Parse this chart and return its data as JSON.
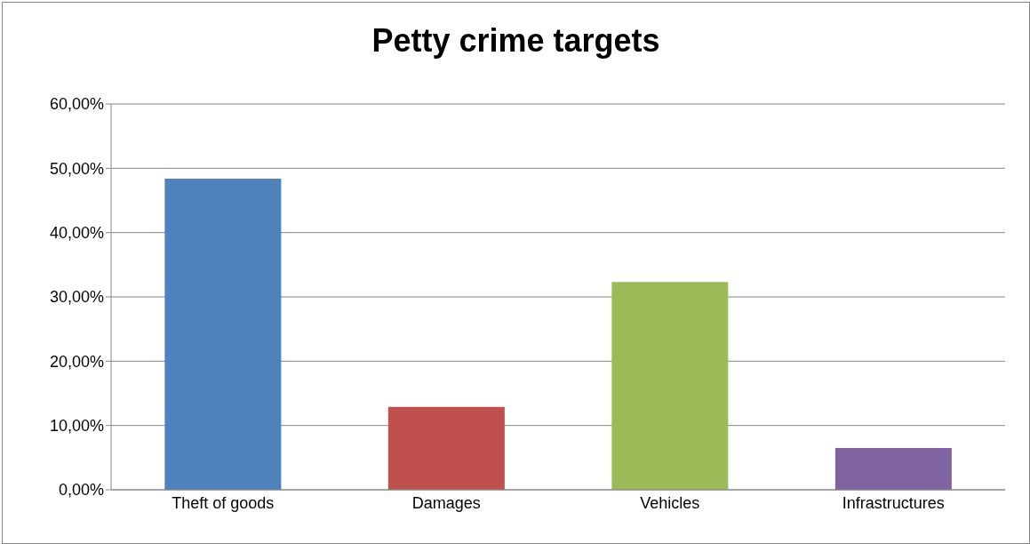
{
  "chart_data": {
    "type": "bar",
    "title": "Petty crime targets",
    "categories": [
      "Theft of goods",
      "Damages",
      "Vehicles",
      "Infrastructures"
    ],
    "values": [
      48.4,
      12.9,
      32.3,
      6.5
    ],
    "colors": [
      "#4f81bd",
      "#c0504d",
      "#9bbb59",
      "#8064a2"
    ],
    "ylim": [
      0,
      60
    ],
    "yticks": [
      {
        "value": 0,
        "label": "0,00%"
      },
      {
        "value": 10,
        "label": "10,00%"
      },
      {
        "value": 20,
        "label": "20,00%"
      },
      {
        "value": 30,
        "label": "30,00%"
      },
      {
        "value": 40,
        "label": "40,00%"
      },
      {
        "value": 50,
        "label": "50,00%"
      },
      {
        "value": 60,
        "label": "60,00%"
      }
    ],
    "grid": "y",
    "legend": false
  }
}
